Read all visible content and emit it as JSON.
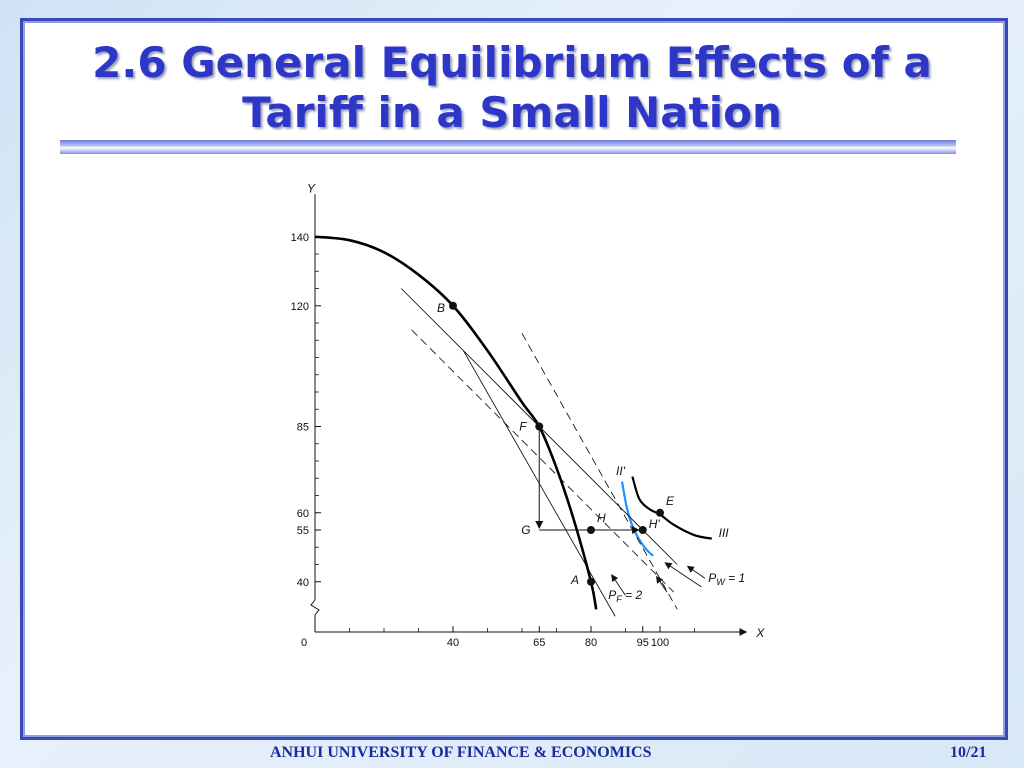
{
  "slide": {
    "title_line1": "2.6 General Equilibrium Effects of a",
    "title_line2": "Tariff in a Small Nation",
    "footer_org": "ANHUI UNIVERSITY OF FINANCE & ECONOMICS",
    "footer_page": "10/21"
  },
  "chart_data": {
    "type": "line",
    "title": "",
    "xlabel": "X",
    "ylabel": "Y",
    "xlim": [
      0,
      120
    ],
    "ylim": [
      30,
      150
    ],
    "x_ticks": [
      0,
      40,
      65,
      80,
      95,
      100
    ],
    "y_ticks": [
      40,
      55,
      60,
      85,
      120,
      140
    ],
    "x_minor_ticks": [
      10,
      20,
      30,
      50,
      60,
      70,
      90,
      110
    ],
    "y_minor_ticks": [
      45,
      50,
      65,
      70,
      75,
      80,
      90,
      95,
      100,
      105,
      110,
      115,
      125,
      130,
      135
    ],
    "origin_label": "0",
    "series": [
      {
        "name": "",
        "kind": "ppf",
        "color": "#000000",
        "values": [
          [
            0,
            140
          ],
          [
            10,
            139
          ],
          [
            20,
            135.5
          ],
          [
            30,
            129
          ],
          [
            40,
            120
          ],
          [
            50,
            107
          ],
          [
            60,
            92
          ],
          [
            65,
            85
          ],
          [
            70,
            73
          ],
          [
            75,
            58
          ],
          [
            80,
            40
          ],
          [
            81.5,
            32
          ]
        ]
      },
      {
        "name": "III",
        "kind": "indifference",
        "color": "#000000",
        "values": [
          [
            92,
            70.5
          ],
          [
            94,
            64
          ],
          [
            97,
            61
          ],
          [
            100,
            59.5
          ],
          [
            104,
            56.5
          ],
          [
            110,
            53.5
          ],
          [
            115,
            52.5
          ]
        ]
      },
      {
        "name": "II'",
        "kind": "indifference",
        "color": "#1e90ff",
        "values": [
          [
            89,
            69
          ],
          [
            90.5,
            61
          ],
          [
            92.5,
            55
          ],
          [
            95.5,
            50
          ],
          [
            98,
            47.5
          ]
        ]
      },
      {
        "name": "P_W = 1",
        "kind": "price-line-solid",
        "color": "#000000",
        "values": [
          [
            25,
            125
          ],
          [
            105,
            45
          ]
        ]
      },
      {
        "name": "P_F = 2",
        "kind": "price-line-solid",
        "color": "#000000",
        "values": [
          [
            43,
            107
          ],
          [
            87,
            30
          ]
        ]
      },
      {
        "name": "",
        "kind": "price-line-dashed",
        "color": "#000000",
        "values": [
          [
            28,
            113
          ],
          [
            104,
            37
          ]
        ]
      },
      {
        "name": "",
        "kind": "price-line-dashed",
        "color": "#000000",
        "values": [
          [
            60,
            112
          ],
          [
            105,
            32
          ]
        ]
      }
    ],
    "points": [
      {
        "label": "B",
        "x": 40,
        "y": 120
      },
      {
        "label": "F",
        "x": 65,
        "y": 85
      },
      {
        "label": "A",
        "x": 80,
        "y": 40
      },
      {
        "label": "H",
        "x": 80,
        "y": 55
      },
      {
        "label": "H'",
        "x": 95,
        "y": 55
      },
      {
        "label": "E",
        "x": 100,
        "y": 60
      },
      {
        "label": "G",
        "x": 65,
        "y": 55
      }
    ],
    "annotations": [
      {
        "text": "P",
        "sub": "F",
        "rest": " = 2"
      },
      {
        "text": "P",
        "sub": "W",
        "rest": " = 1"
      },
      {
        "text": "III"
      },
      {
        "text": "II'"
      }
    ]
  }
}
